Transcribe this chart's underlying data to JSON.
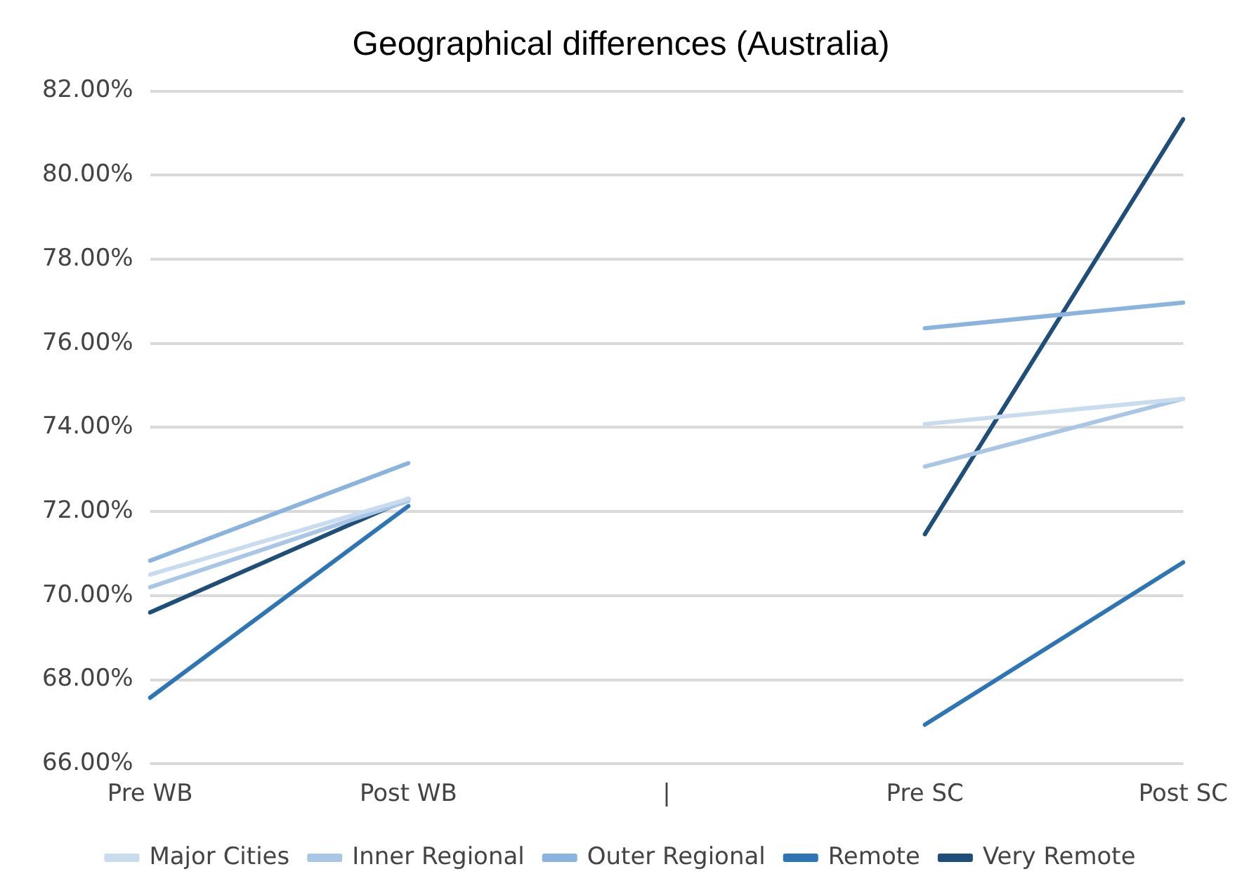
{
  "chart_data": {
    "type": "line",
    "title": "Geographical differences (Australia)",
    "categories": [
      "Pre WB",
      "Post WB",
      "|",
      "Pre SC",
      "Post SC"
    ],
    "series": [
      {
        "name": "Major Cities",
        "color": "#c9dcef",
        "values": [
          70.5,
          72.3,
          null,
          74.08,
          74.68
        ]
      },
      {
        "name": "Inner Regional",
        "color": "#a9c6e6",
        "values": [
          70.2,
          72.25,
          null,
          73.07,
          74.68
        ]
      },
      {
        "name": "Outer Regional",
        "color": "#8ab4de",
        "values": [
          70.83,
          73.15,
          null,
          76.36,
          76.97
        ]
      },
      {
        "name": "Remote",
        "color": "#2e75b6",
        "values": [
          67.57,
          72.13,
          null,
          66.93,
          70.79
        ]
      },
      {
        "name": "Very Remote",
        "color": "#1f4e79",
        "values": [
          69.6,
          72.3,
          null,
          71.46,
          81.33
        ]
      }
    ],
    "ylim": [
      66,
      82
    ],
    "yticks": [
      {
        "value": 66,
        "label": "66.00%"
      },
      {
        "value": 68,
        "label": "68.00%"
      },
      {
        "value": 70,
        "label": "70.00%"
      },
      {
        "value": 72,
        "label": "72.00%"
      },
      {
        "value": 74,
        "label": "74.00%"
      },
      {
        "value": 76,
        "label": "76.00%"
      },
      {
        "value": 78,
        "label": "78.00%"
      },
      {
        "value": 80,
        "label": "80.00%"
      },
      {
        "value": 82,
        "label": "82.00%"
      }
    ],
    "grid": "y",
    "legend": "bottom",
    "marker": "none",
    "line_style": "solid"
  }
}
